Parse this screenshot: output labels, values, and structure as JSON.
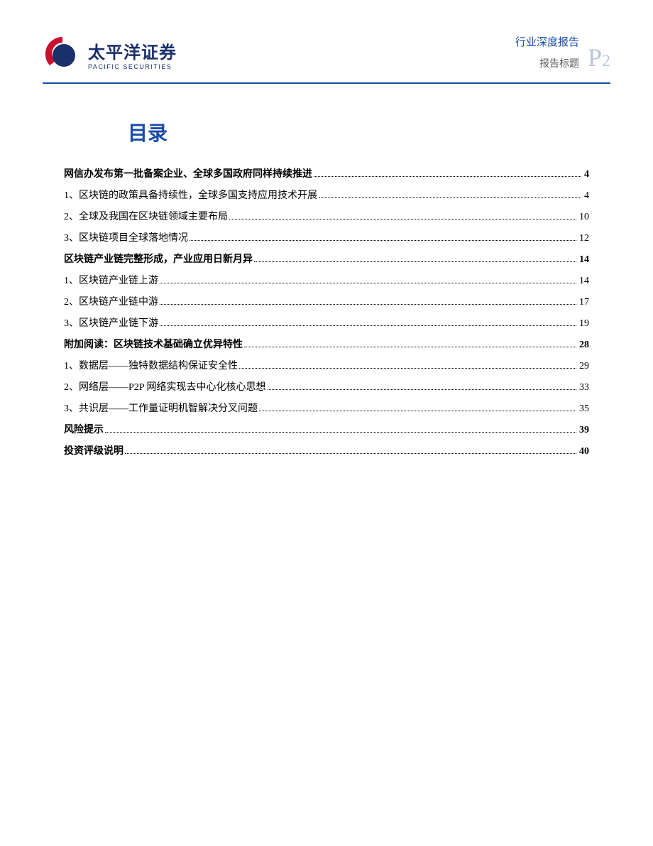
{
  "header": {
    "logo_cn": "太平洋证券",
    "logo_en": "PACIFIC SECURITIES",
    "report_type": "行业深度报告",
    "report_title_label": "报告标题",
    "page_letter": "P",
    "page_number": "2",
    "colors": {
      "brand_blue": "#1a2f6b",
      "accent_blue": "#1a4ba8",
      "logo_red": "#c8102e",
      "page_gray": "#b8c4d9",
      "text_gray": "#595959"
    }
  },
  "toc": {
    "title": "目录",
    "entries": [
      {
        "level": "section",
        "label": "网信办发布第一批备案企业、全球多国政府同样持续推进",
        "page": "4"
      },
      {
        "level": "item",
        "label": "1、区块链的政策具备持续性，全球多国支持应用技术开展",
        "page": "4"
      },
      {
        "level": "item",
        "label": "2、全球及我国在区块链领域主要布局",
        "page": "10"
      },
      {
        "level": "item",
        "label": "3、区块链项目全球落地情况",
        "page": "12"
      },
      {
        "level": "section",
        "label": "区块链产业链完整形成，产业应用日新月异",
        "page": "14"
      },
      {
        "level": "item",
        "label": "1、区块链产业链上游",
        "page": "14"
      },
      {
        "level": "item",
        "label": "2、区块链产业链中游",
        "page": "17"
      },
      {
        "level": "item",
        "label": "3、区块链产业链下游",
        "page": "19"
      },
      {
        "level": "section",
        "label": "附加阅读：区块链技术基础确立优异特性",
        "page": "28"
      },
      {
        "level": "item",
        "label": "1、数据层——独特数据结构保证安全性",
        "page": "29"
      },
      {
        "level": "item",
        "label": "2、网络层——P2P 网络实现去中心化核心思想",
        "page": "33"
      },
      {
        "level": "item",
        "label": "3、共识层——工作量证明机智解决分叉问题",
        "page": "35"
      },
      {
        "level": "section",
        "label": "风险提示",
        "page": "39"
      },
      {
        "level": "section",
        "label": "投资评级说明",
        "page": "40"
      }
    ]
  }
}
